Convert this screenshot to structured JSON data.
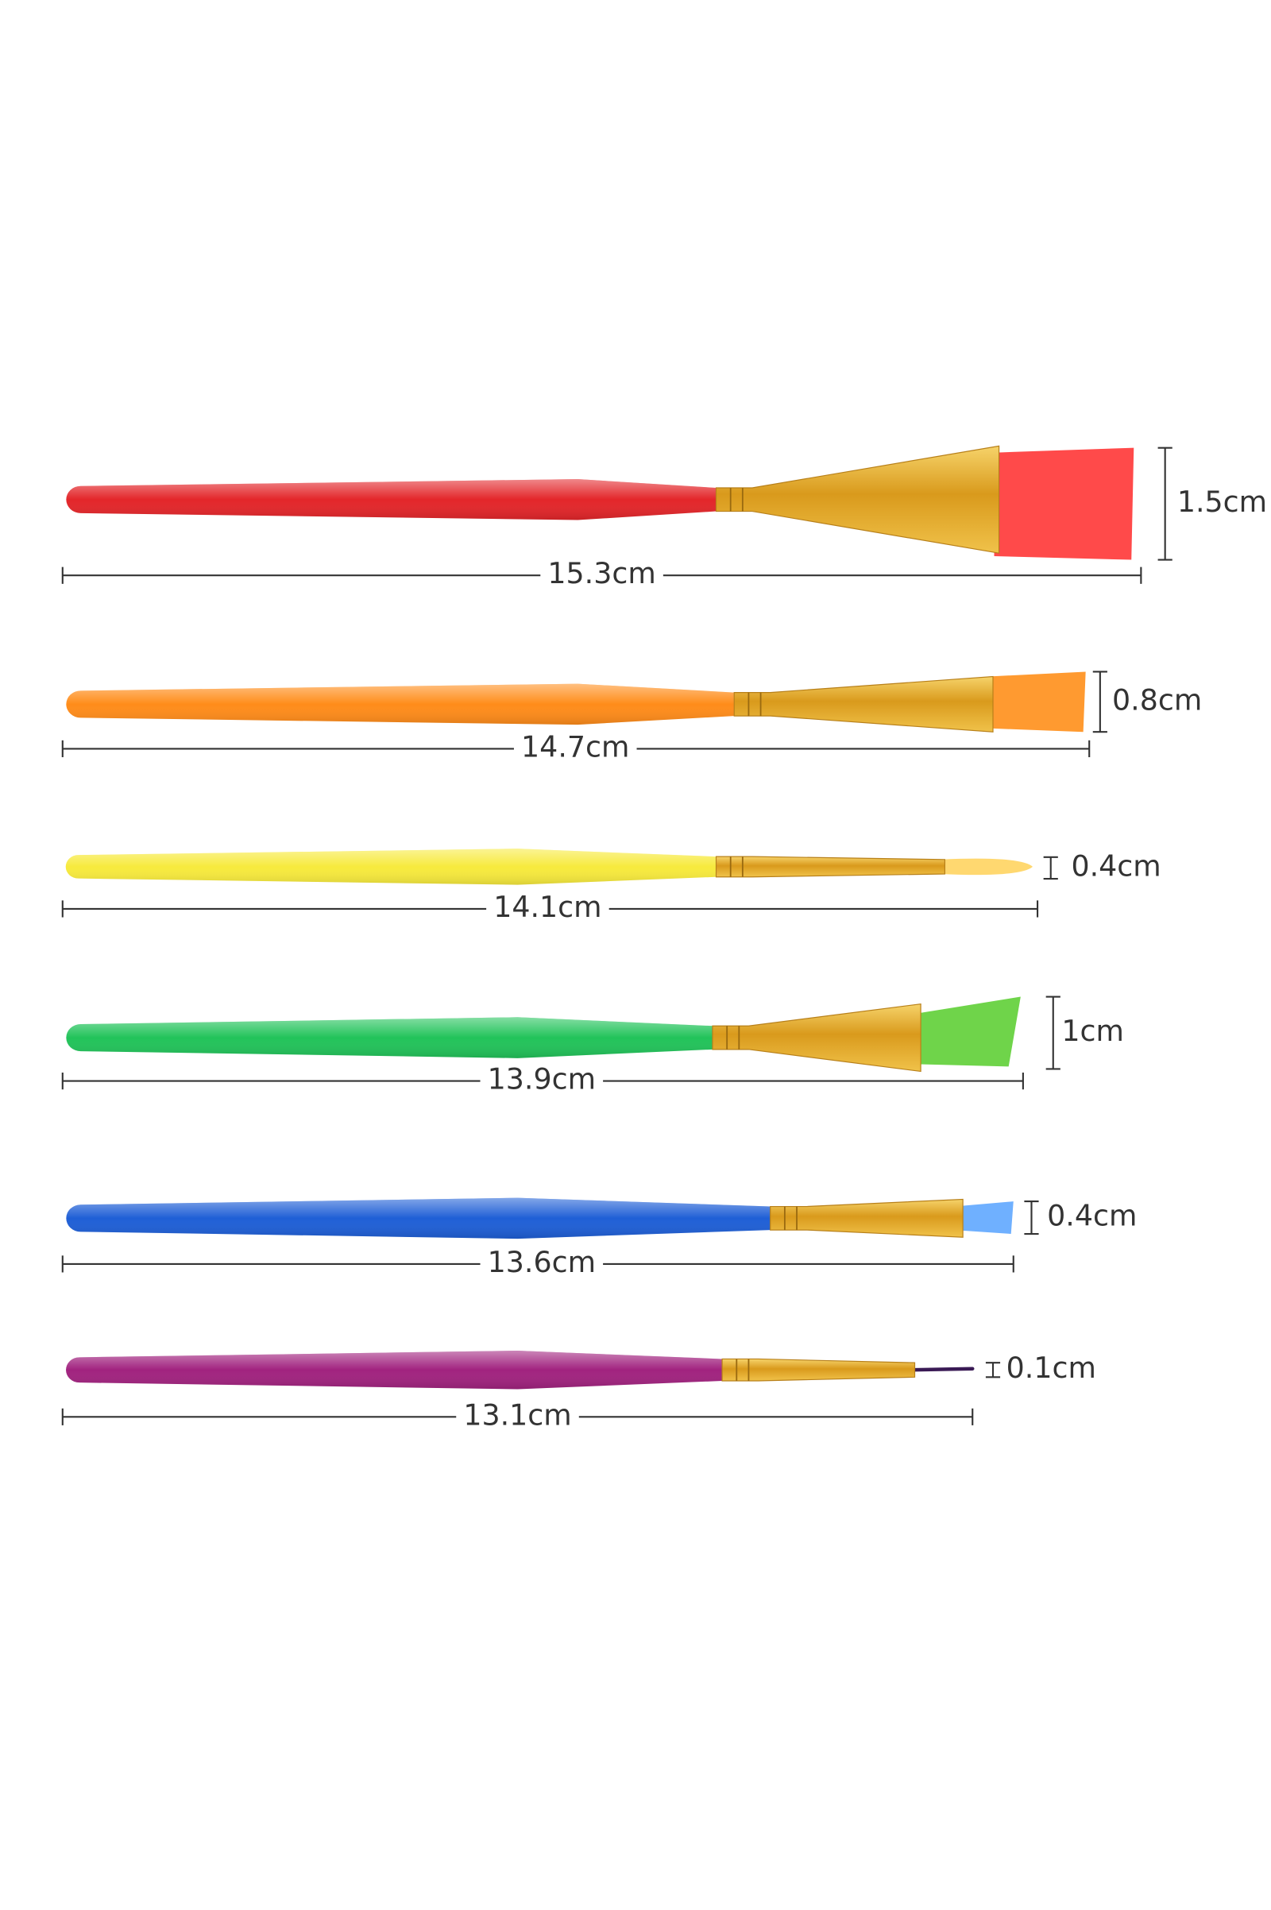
{
  "brushes": [
    {
      "length": "15.3cm",
      "width": "1.5cm"
    },
    {
      "length": "14.7cm",
      "width": "0.8cm"
    },
    {
      "length": "14.1cm",
      "width": "0.4cm"
    },
    {
      "length": "13.9cm",
      "width": "1cm"
    },
    {
      "length": "13.6cm",
      "width": "0.4cm"
    },
    {
      "length": "13.1cm",
      "width": "0.1cm"
    }
  ]
}
